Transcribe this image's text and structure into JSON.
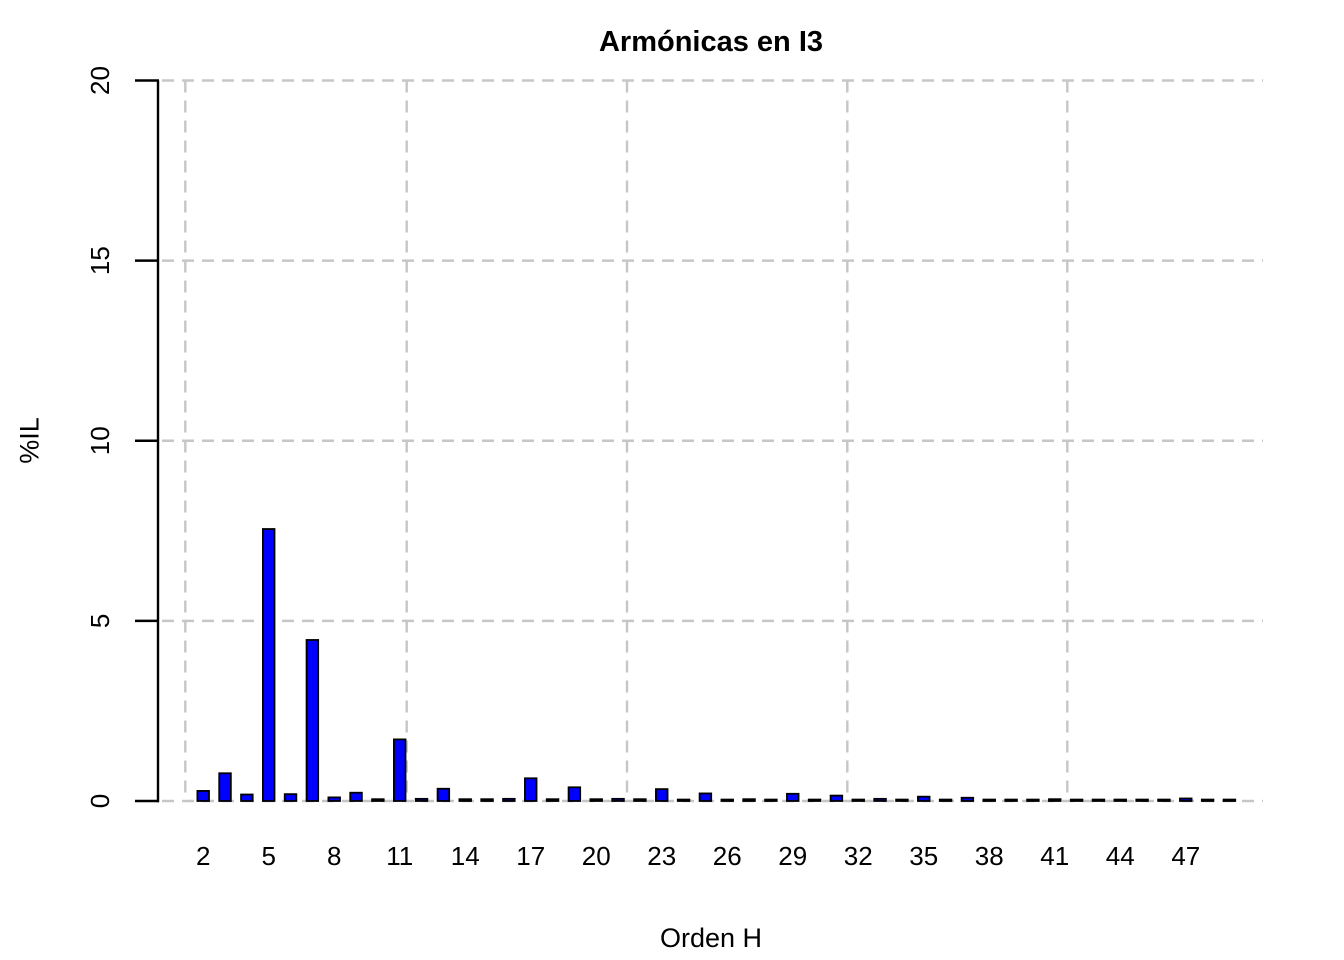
{
  "chart_data": {
    "type": "bar",
    "title": "Armónicas en I3",
    "xlabel": "Orden H",
    "ylabel": "%IL",
    "ylim": [
      0,
      20
    ],
    "yticks": [
      0,
      5,
      10,
      15,
      20
    ],
    "xtick_labels": [
      "2",
      "5",
      "8",
      "11",
      "14",
      "17",
      "20",
      "23",
      "26",
      "29",
      "32",
      "35",
      "38",
      "41",
      "44",
      "47"
    ],
    "xtick_step": 3,
    "x_first_harmonic": 2,
    "categories": [
      2,
      3,
      4,
      5,
      6,
      7,
      8,
      9,
      10,
      11,
      12,
      13,
      14,
      15,
      16,
      17,
      18,
      19,
      20,
      21,
      22,
      23,
      24,
      25,
      26,
      27,
      28,
      29,
      30,
      31,
      32,
      33,
      34,
      35,
      36,
      37,
      38,
      39,
      40,
      41,
      42,
      43,
      44,
      45,
      46,
      47,
      48,
      49
    ],
    "values": [
      0.28,
      0.77,
      0.18,
      7.55,
      0.19,
      4.47,
      0.1,
      0.23,
      0.05,
      1.71,
      0.06,
      0.34,
      0.05,
      0.05,
      0.06,
      0.63,
      0.05,
      0.38,
      0.05,
      0.06,
      0.05,
      0.33,
      0.04,
      0.21,
      0.04,
      0.05,
      0.04,
      0.2,
      0.04,
      0.15,
      0.04,
      0.06,
      0.04,
      0.12,
      0.04,
      0.09,
      0.04,
      0.04,
      0.04,
      0.05,
      0.04,
      0.04,
      0.04,
      0.04,
      0.04,
      0.07,
      0.04,
      0.04
    ],
    "bar_fill": "#0000FF",
    "bar_border": "#000000",
    "axis_color": "#000000",
    "grid_color": "#C6C6C6",
    "grid_style": "dashed",
    "grid_on": true,
    "legend": "none",
    "background": "#FFFFFF"
  }
}
